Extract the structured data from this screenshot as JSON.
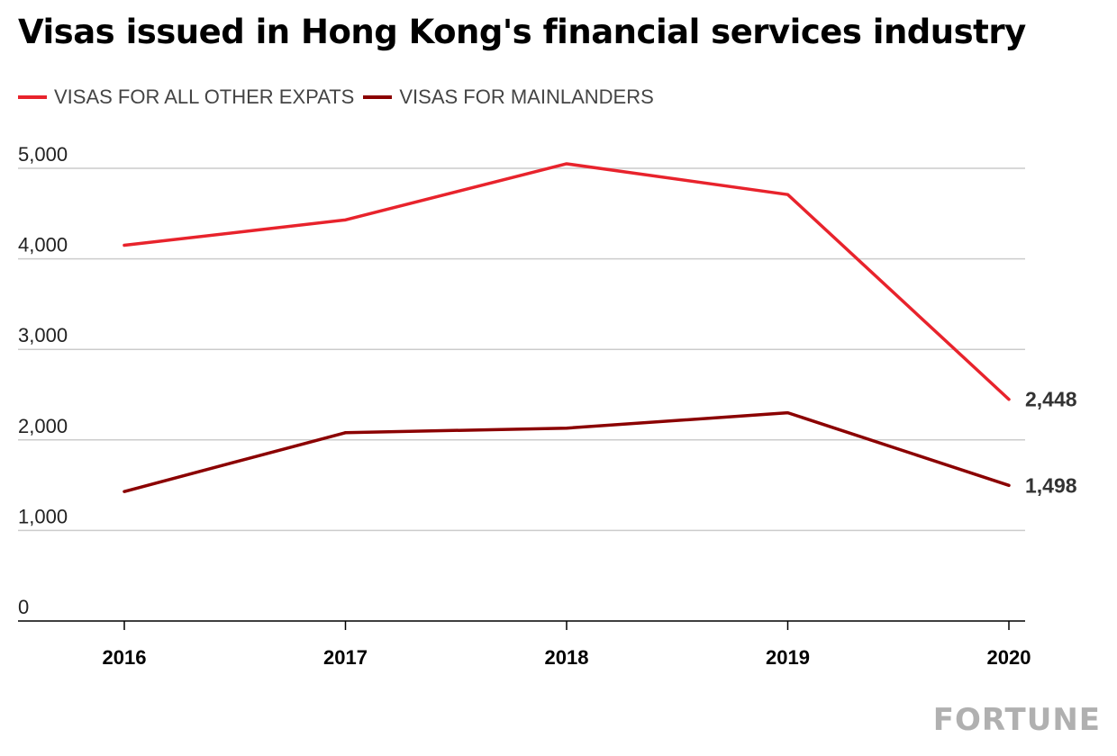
{
  "title": "Visas issued in Hong Kong's financial services industry",
  "brand": "FORTUNE",
  "colors": {
    "other_expats": "#e8232c",
    "mainlanders": "#8b0000",
    "grid": "#cccccc",
    "axis": "#000000",
    "tick_text": "#222222",
    "end_label": "#333333"
  },
  "legend": [
    {
      "label": "VISAS FOR ALL OTHER EXPATS",
      "color": "#e8232c"
    },
    {
      "label": "VISAS FOR MAINLANDERS",
      "color": "#8b0000"
    }
  ],
  "chart_data": {
    "type": "line",
    "title": "Visas issued in Hong Kong's financial services industry",
    "x": [
      "2016",
      "2017",
      "2018",
      "2019",
      "2020"
    ],
    "series": [
      {
        "name": "VISAS FOR ALL OTHER EXPATS",
        "values": [
          4150,
          4430,
          5050,
          4710,
          2448
        ]
      },
      {
        "name": "VISAS FOR MAINLANDERS",
        "values": [
          1430,
          2080,
          2130,
          2300,
          1498
        ]
      }
    ],
    "end_labels": [
      "2,448",
      "1,498"
    ],
    "ylim": [
      0,
      5000
    ],
    "yticks": [
      0,
      1000,
      2000,
      3000,
      4000,
      5000
    ],
    "ytick_labels": [
      "0",
      "1,000",
      "2,000",
      "3,000",
      "4,000",
      "5,000"
    ],
    "grid": true,
    "legend_position": "top-left",
    "xlabel": "",
    "ylabel": ""
  }
}
